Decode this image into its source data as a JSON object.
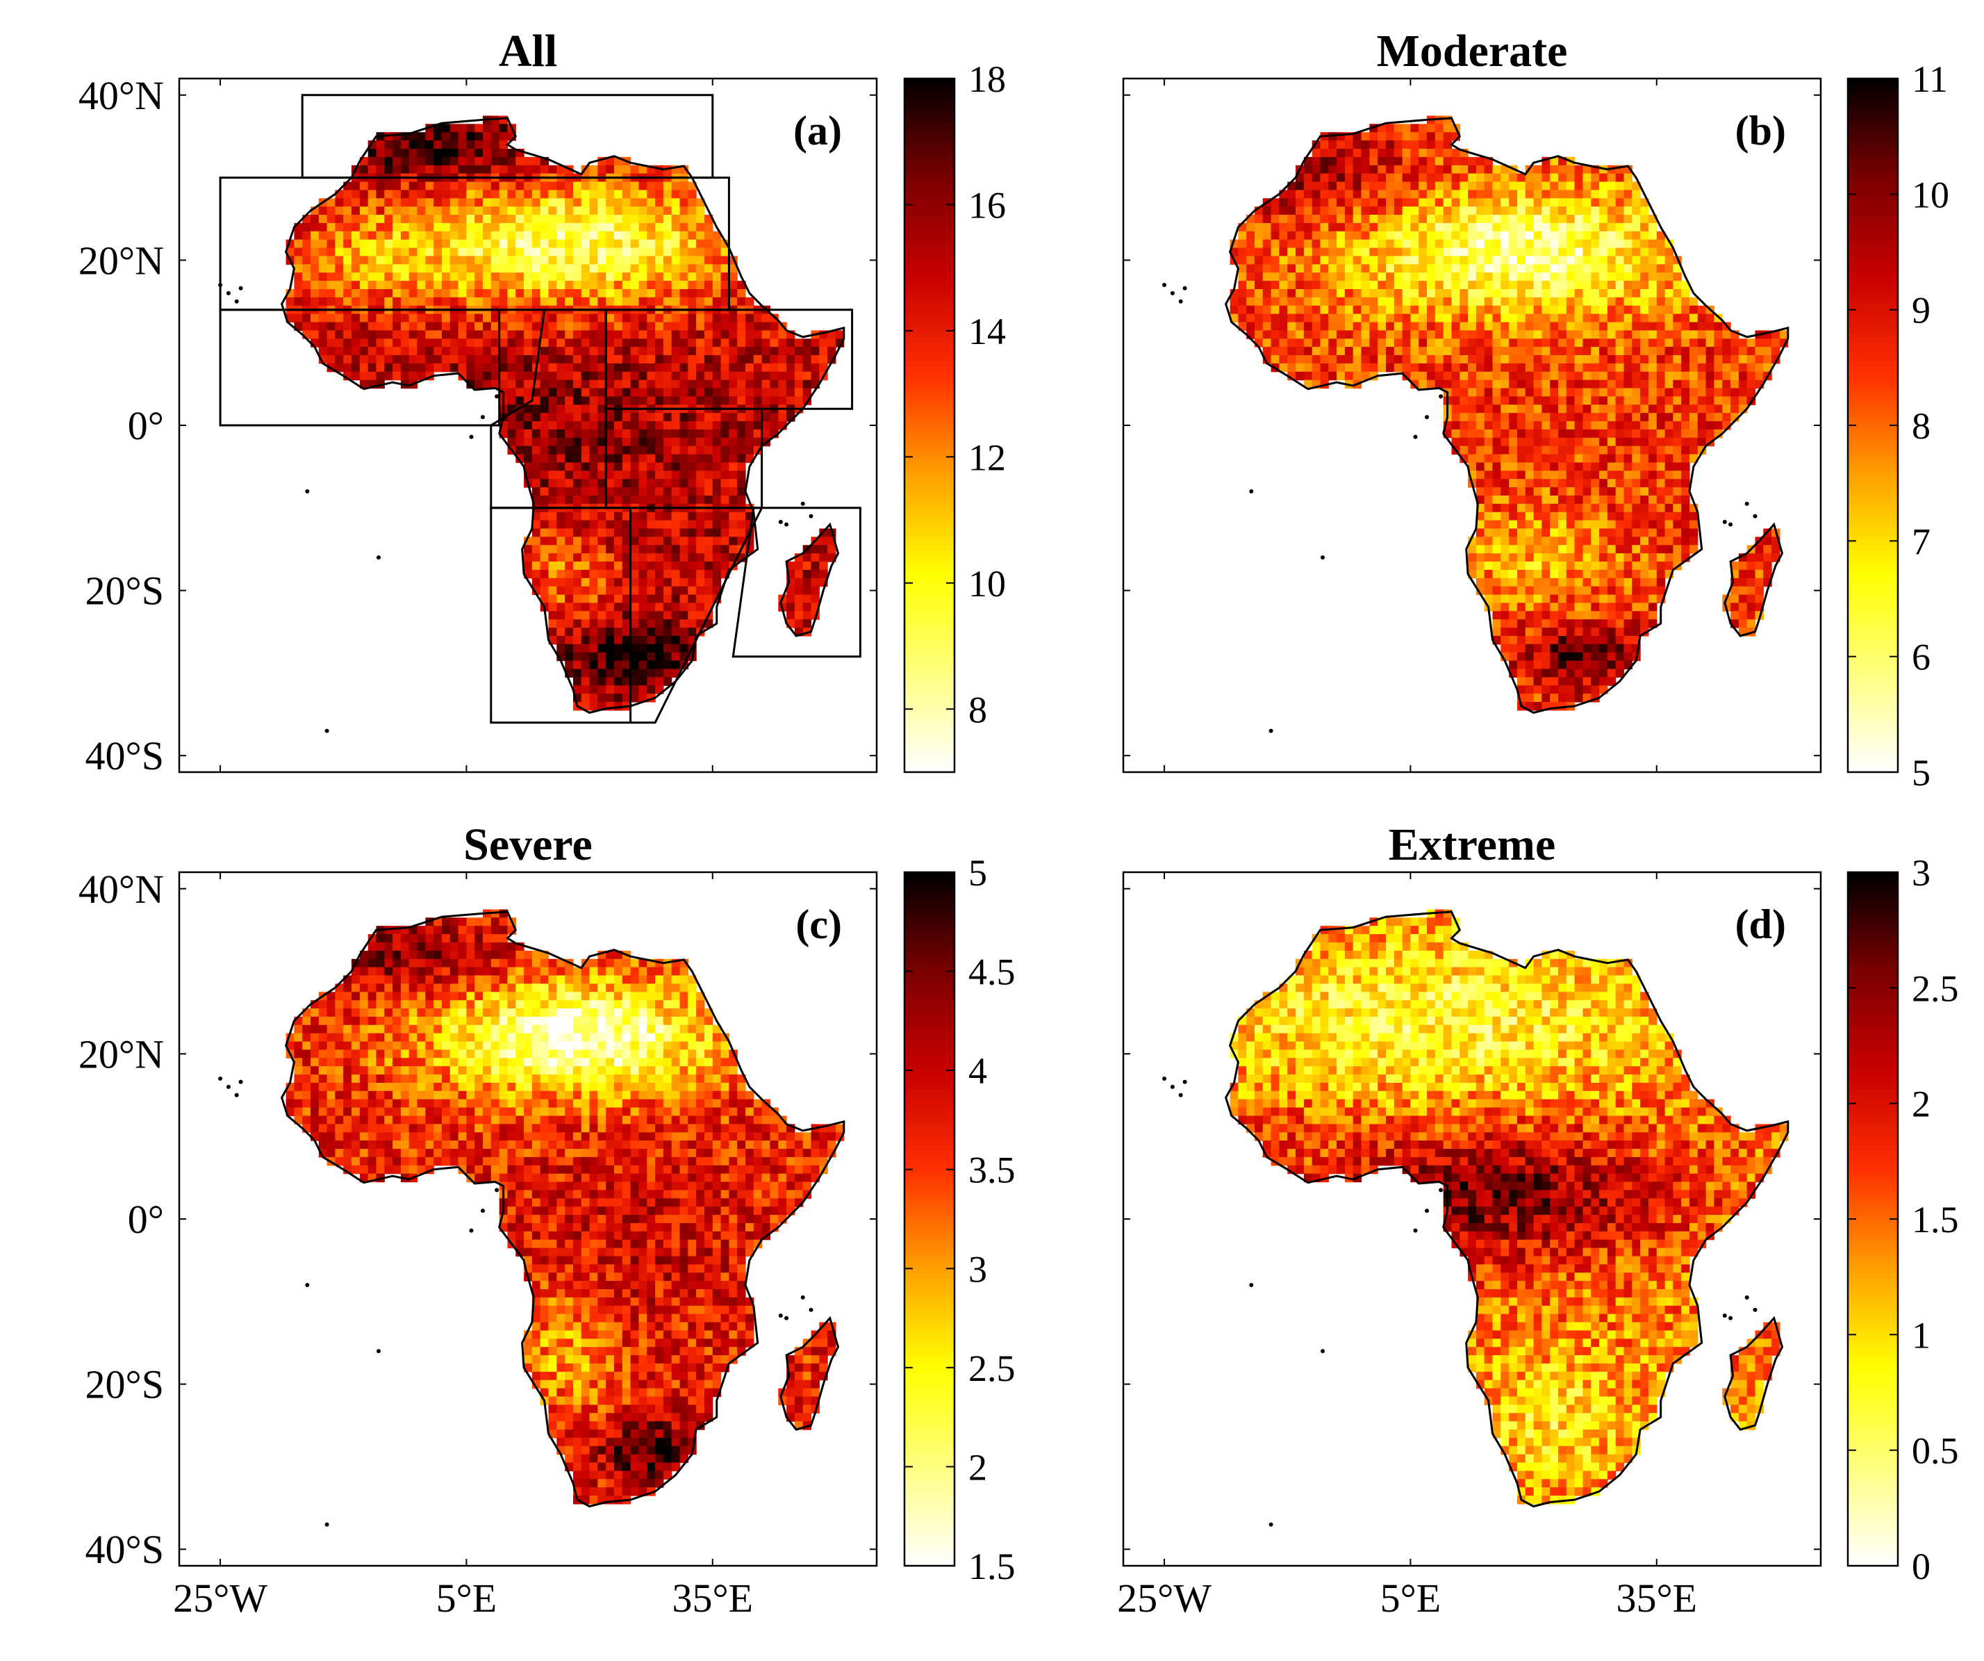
{
  "figure": {
    "lat_tick_labels": [
      "40°N",
      "20°N",
      "0°",
      "20°S",
      "40°S"
    ],
    "lat_tick_values": [
      40,
      20,
      0,
      -20,
      -40
    ],
    "lon_tick_labels": [
      "25°W",
      "5°E",
      "35°E"
    ],
    "lon_tick_values": [
      -25,
      5,
      35
    ],
    "map_extent": {
      "lon": [
        -30,
        55
      ],
      "lat": [
        -42,
        42
      ]
    },
    "panels": [
      {
        "id": "a",
        "title": "All",
        "label": "(a)",
        "colorbar": {
          "min": 7,
          "max": 18,
          "ticks": [
            8,
            10,
            12,
            14,
            16,
            18
          ],
          "tick_labels": [
            "8",
            "10",
            "12",
            "14",
            "16",
            "18"
          ]
        },
        "show_lat_labels": true,
        "show_lon_labels": false,
        "show_regions": true
      },
      {
        "id": "b",
        "title": "Moderate",
        "label": "(b)",
        "colorbar": {
          "min": 5,
          "max": 11,
          "ticks": [
            5,
            6,
            7,
            8,
            9,
            10,
            11
          ],
          "tick_labels": [
            "5",
            "6",
            "7",
            "8",
            "9",
            "10",
            "11"
          ]
        },
        "show_lat_labels": false,
        "show_lon_labels": false,
        "show_regions": false
      },
      {
        "id": "c",
        "title": "Severe",
        "label": "(c)",
        "colorbar": {
          "min": 1.5,
          "max": 5,
          "ticks": [
            1.5,
            2,
            2.5,
            3,
            3.5,
            4,
            4.5,
            5
          ],
          "tick_labels": [
            "1.5",
            "2",
            "2.5",
            "3",
            "3.5",
            "4",
            "4.5",
            "5"
          ]
        },
        "show_lat_labels": true,
        "show_lon_labels": true,
        "show_regions": false
      },
      {
        "id": "d",
        "title": "Extreme",
        "label": "(d)",
        "colorbar": {
          "min": 0,
          "max": 3,
          "ticks": [
            0,
            0.5,
            1,
            1.5,
            2,
            2.5,
            3
          ],
          "tick_labels": [
            "0",
            "0.5",
            "1",
            "1.5",
            "2",
            "2.5",
            "3"
          ]
        },
        "show_lat_labels": false,
        "show_lon_labels": true,
        "show_regions": false
      }
    ],
    "colormap": [
      "#ffffff",
      "#ffff80",
      "#ffff00",
      "#ffa000",
      "#ff3000",
      "#c80000",
      "#7a0000",
      "#000000"
    ]
  }
}
